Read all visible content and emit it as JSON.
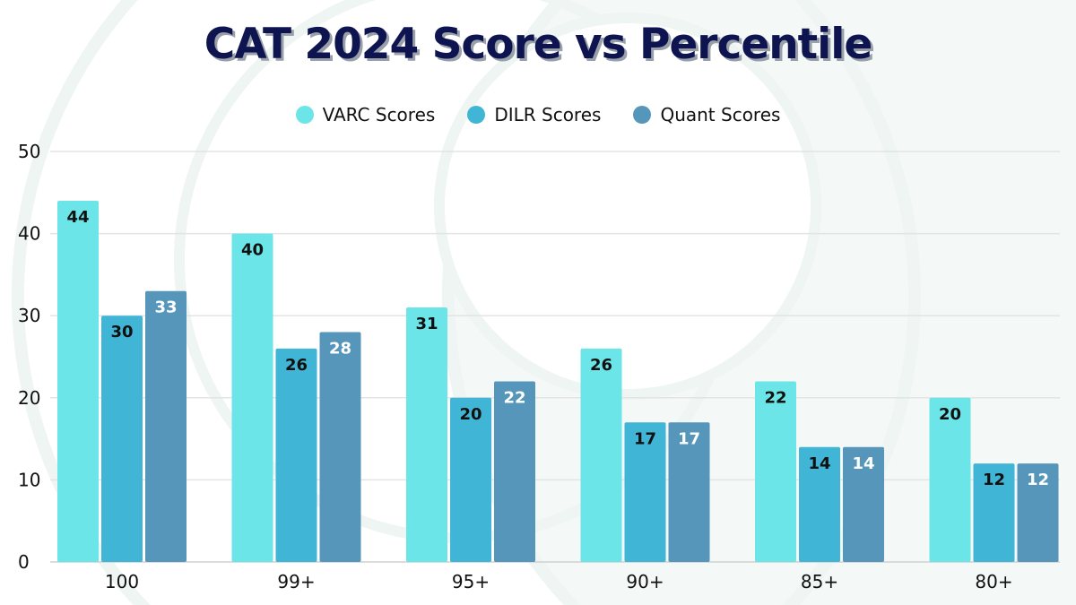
{
  "chart_data": {
    "type": "bar",
    "title": "CAT 2024 Score vs Percentile",
    "categories": [
      "100",
      "99+",
      "95+",
      "90+",
      "85+",
      "80+"
    ],
    "series": [
      {
        "name": "VARC Scores",
        "values": [
          44,
          40,
          31,
          26,
          22,
          20
        ],
        "color": "#6ce5e8",
        "label_color": "#111111"
      },
      {
        "name": "DILR Scores",
        "values": [
          30,
          26,
          20,
          17,
          14,
          12
        ],
        "color": "#41b5d5",
        "label_color": "#111111"
      },
      {
        "name": "Quant Scores",
        "values": [
          33,
          28,
          22,
          17,
          14,
          12
        ],
        "color": "#5796bb",
        "label_color": "#ffffff"
      }
    ],
    "ylim": [
      0,
      50
    ],
    "yticks": [
      0,
      10,
      20,
      30,
      40,
      50
    ],
    "grid": true,
    "legend": "top-center",
    "xlabel": "",
    "ylabel": ""
  }
}
